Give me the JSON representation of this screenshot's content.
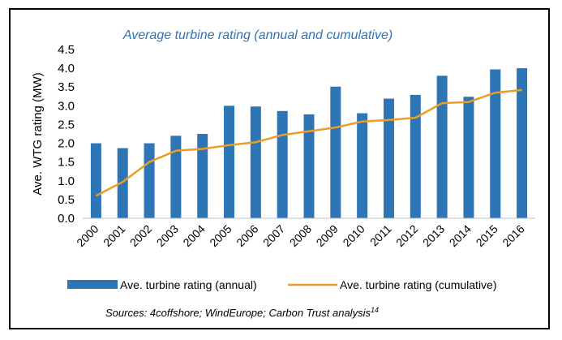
{
  "chart_data": {
    "type": "bar",
    "title": "Average turbine rating (annual and cumulative)",
    "ylabel": "Ave. WTG rating (MW)",
    "xlabel": "",
    "ylim": [
      0,
      4.5
    ],
    "yticks": [
      "0.0",
      "0.5",
      "1.0",
      "1.5",
      "2.0",
      "2.5",
      "3.0",
      "3.5",
      "4.0",
      "4.5"
    ],
    "categories": [
      "2000",
      "2001",
      "2002",
      "2003",
      "2004",
      "2005",
      "2006",
      "2007",
      "2008",
      "2009",
      "2010",
      "2011",
      "2012",
      "2013",
      "2014",
      "2015",
      "2016"
    ],
    "series": [
      {
        "name": "Ave. turbine rating (annual)",
        "type": "bar",
        "color": "#2E75B6",
        "values": [
          2.0,
          1.87,
          2.0,
          2.2,
          2.25,
          3.0,
          2.98,
          2.86,
          2.77,
          3.51,
          2.8,
          3.19,
          3.29,
          3.8,
          3.24,
          3.97,
          4.0
        ]
      },
      {
        "name": "Ave. turbine rating (cumulative)",
        "type": "line",
        "color": "#ED9C28",
        "values": [
          0.6,
          0.97,
          1.5,
          1.8,
          1.85,
          1.95,
          2.03,
          2.22,
          2.32,
          2.42,
          2.58,
          2.62,
          2.68,
          3.07,
          3.1,
          3.35,
          3.42
        ]
      }
    ],
    "legend_position": "bottom",
    "grid": false,
    "source": {
      "text": "Sources: 4coffshore; WindEurope; Carbon Trust analysis",
      "superscript": "14"
    }
  }
}
